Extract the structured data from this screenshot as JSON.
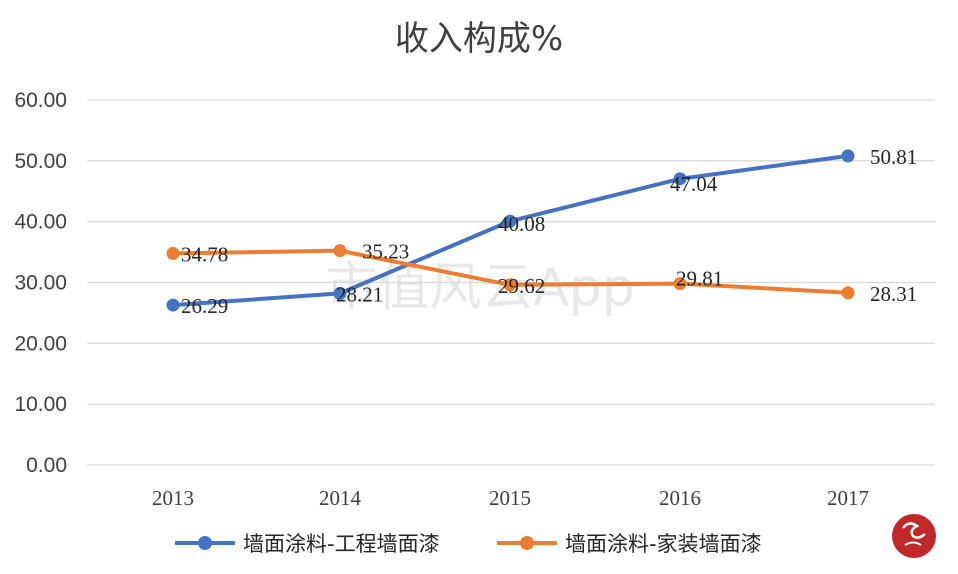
{
  "chart_data": {
    "type": "line",
    "title": "收入构成%",
    "categories": [
      "2013",
      "2014",
      "2015",
      "2016",
      "2017"
    ],
    "ylim": [
      0,
      60
    ],
    "yticks": [
      "0.00",
      "10.00",
      "20.00",
      "30.00",
      "40.00",
      "50.00",
      "60.00"
    ],
    "grid": true,
    "legend_position": "bottom",
    "series": [
      {
        "name": "墙面涂料-工程墙面漆",
        "color": "#4472c4",
        "values": [
          26.29,
          28.21,
          40.08,
          47.04,
          50.81
        ],
        "labels": [
          "26.29",
          "28.21",
          "40.08",
          "47.04",
          "50.81"
        ]
      },
      {
        "name": "墙面涂料-家装墙面漆",
        "color": "#ed7d31",
        "values": [
          34.78,
          35.23,
          29.62,
          29.81,
          28.31
        ],
        "labels": [
          "34.78",
          "35.23",
          "29.62",
          "29.81",
          "28.31"
        ]
      }
    ]
  },
  "watermark": "市值风云App",
  "badge_icon": "red-seal-logo-icon"
}
